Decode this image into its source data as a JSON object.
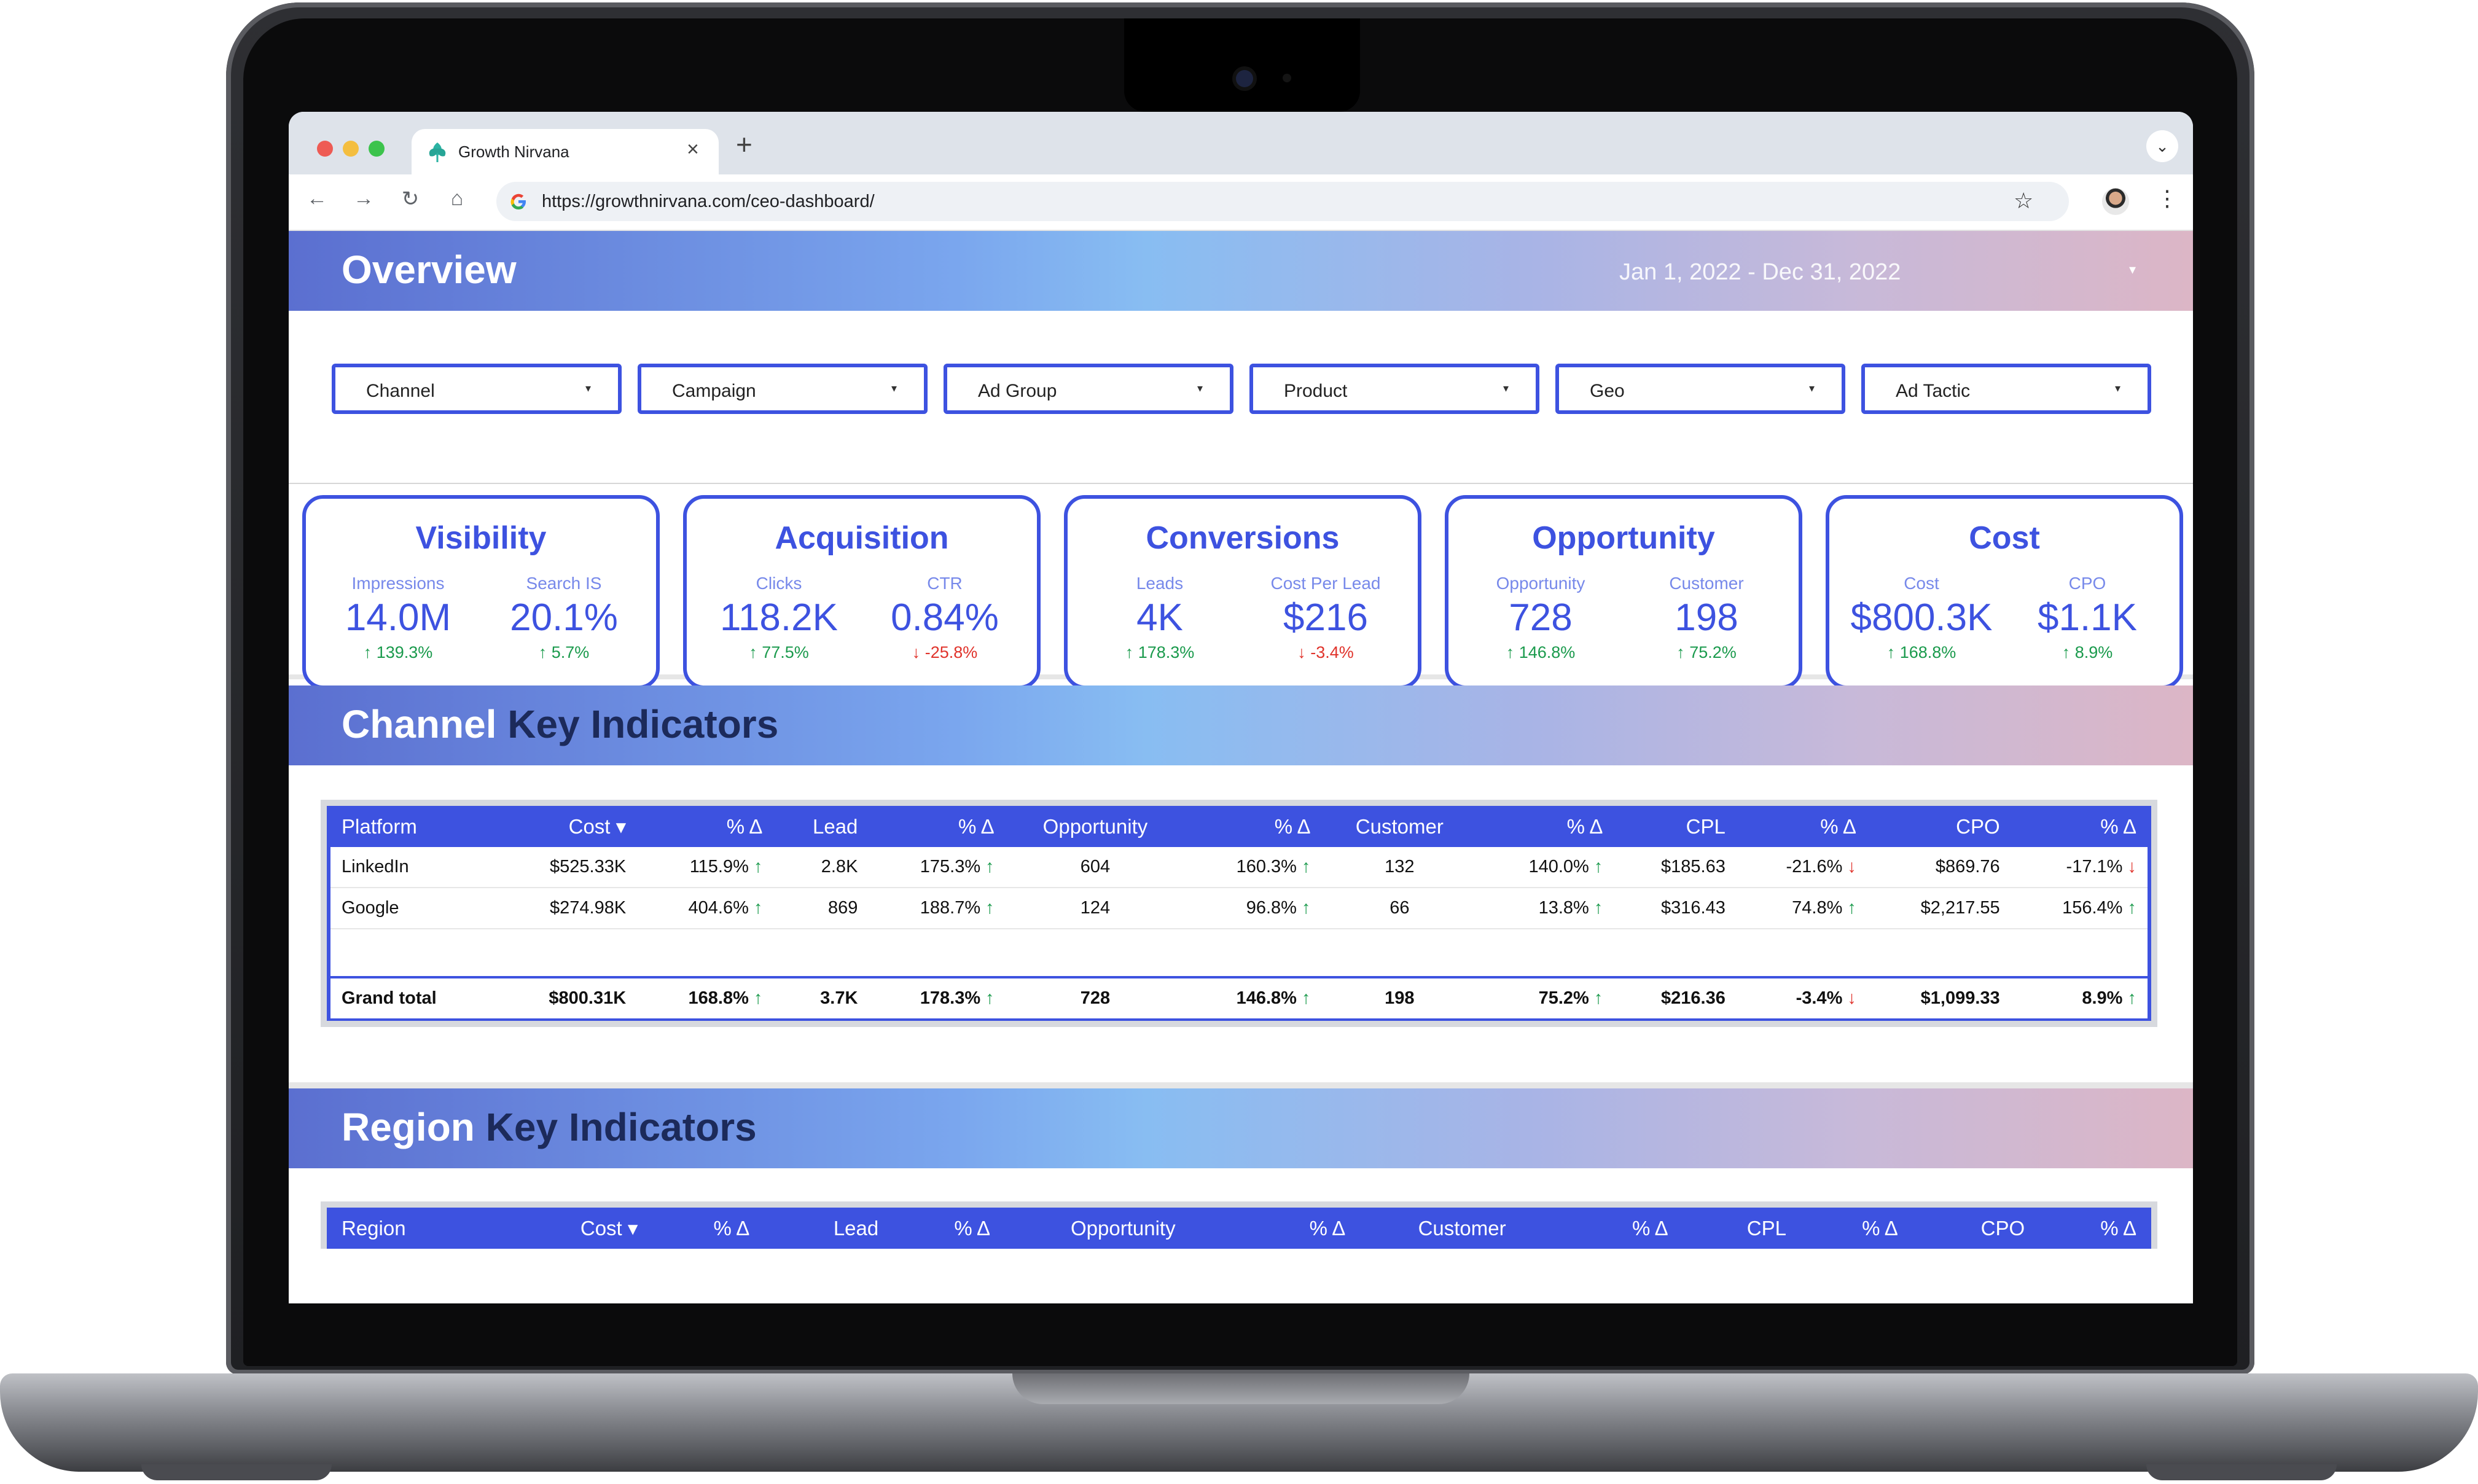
{
  "browser": {
    "tab_title": "Growth Nirvana",
    "tab_close": "×",
    "new_tab": "+",
    "url": "https://growthnirvana.com/ceo-dashboard/",
    "back": "←",
    "forward": "→",
    "reload": "↻",
    "home": "⌂",
    "star": "☆",
    "menu": "⋮",
    "tabs_menu": "⌄",
    "traffic_light_colors": [
      "#ee5b54",
      "#f4be3f",
      "#3cc34c"
    ]
  },
  "overview": {
    "title": "Overview",
    "date_range": "Jan 1, 2022 - Dec 31, 2022",
    "date_caret": "▾"
  },
  "filters": [
    {
      "label": "Channel"
    },
    {
      "label": "Campaign"
    },
    {
      "label": "Ad Group"
    },
    {
      "label": "Product"
    },
    {
      "label": "Geo"
    },
    {
      "label": "Ad Tactic"
    }
  ],
  "filter_caret": "▾",
  "kpis": [
    {
      "title": "Visibility",
      "metrics": [
        {
          "label": "Impressions",
          "value": "14.0M",
          "delta": "↑ 139.3%",
          "dir": "up"
        },
        {
          "label": "Search IS",
          "value": "20.1%",
          "delta": "↑ 5.7%",
          "dir": "up"
        }
      ]
    },
    {
      "title": "Acquisition",
      "metrics": [
        {
          "label": "Clicks",
          "value": "118.2K",
          "delta": "↑ 77.5%",
          "dir": "up"
        },
        {
          "label": "CTR",
          "value": "0.84%",
          "delta": "↓ -25.8%",
          "dir": "down"
        }
      ]
    },
    {
      "title": "Conversions",
      "metrics": [
        {
          "label": "Leads",
          "value": "4K",
          "delta": "↑ 178.3%",
          "dir": "up"
        },
        {
          "label": "Cost Per Lead",
          "value": "$216",
          "delta": "↓ -3.4%",
          "dir": "down"
        }
      ]
    },
    {
      "title": "Opportunity",
      "metrics": [
        {
          "label": "Opportunity",
          "value": "728",
          "delta": "↑ 146.8%",
          "dir": "up"
        },
        {
          "label": "Customer",
          "value": "198",
          "delta": "↑ 75.2%",
          "dir": "up"
        }
      ]
    },
    {
      "title": "Cost",
      "metrics": [
        {
          "label": "Cost",
          "value": "$800.3K",
          "delta": "↑ 168.8%",
          "dir": "up"
        },
        {
          "label": "CPO",
          "value": "$1.1K",
          "delta": "↑ 8.9%",
          "dir": "up"
        }
      ]
    }
  ],
  "channel_section": {
    "title_light": "Channel",
    "title_dark": "Key Indicators",
    "headers": [
      "Platform",
      "Cost ▾",
      "% Δ",
      "Lead",
      "% Δ",
      "Opportunity",
      "% Δ",
      "Customer",
      "% Δ",
      "CPL",
      "% Δ",
      "CPO",
      "% Δ"
    ],
    "rows": [
      [
        "LinkedIn",
        "$525.33K",
        "115.9% ↑",
        "2.8K",
        "175.3% ↑",
        "604",
        "160.3% ↑",
        "132",
        "140.0% ↑",
        "$185.63",
        "-21.6% ↓",
        "$869.76",
        "-17.1% ↓"
      ],
      [
        "Google",
        "$274.98K",
        "404.6% ↑",
        "869",
        "188.7% ↑",
        "124",
        "96.8% ↑",
        "66",
        "13.8% ↑",
        "$316.43",
        "74.8% ↑",
        "$2,217.55",
        "156.4% ↑"
      ]
    ],
    "total": [
      "Grand total",
      "$800.31K",
      "168.8% ↑",
      "3.7K",
      "178.3% ↑",
      "728",
      "146.8% ↑",
      "198",
      "75.2% ↑",
      "$216.36",
      "-3.4% ↓",
      "$1,099.33",
      "8.9% ↑"
    ]
  },
  "region_section": {
    "title_light": "Region",
    "title_dark": "Key Indicators",
    "headers": [
      "Region",
      "Cost ▾",
      "% Δ",
      "Lead",
      "% Δ",
      "Opportunity",
      "% Δ",
      "Customer",
      "% Δ",
      "CPL",
      "% Δ",
      "CPO",
      "% Δ"
    ]
  },
  "colors": {
    "accent": "#3d52e0",
    "up": "#1a9a4c",
    "down": "#e0332b",
    "brand_logo": "#2bb3a3"
  }
}
